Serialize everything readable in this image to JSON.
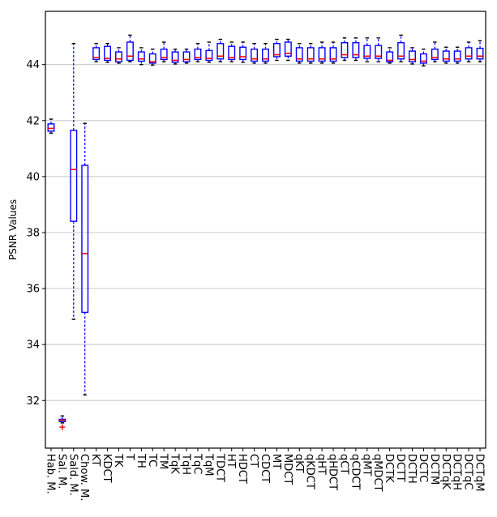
{
  "chart_data": {
    "type": "box",
    "title": "",
    "xlabel": "",
    "ylabel": "PSNR Values",
    "ylim": [
      30.3,
      45.9
    ],
    "yticks": [
      32,
      34,
      36,
      38,
      40,
      42,
      44
    ],
    "grid": "horizontal",
    "colors": {
      "box": "#0000ff",
      "median": "#ff0000",
      "grid": "#d0d0d0",
      "outlier": "#ff0000"
    },
    "categories": [
      "Hab. M.",
      "Sal. M.",
      "Sald. M.",
      "Chow. M.",
      "KT",
      "KDCT",
      "TK",
      "T",
      "TH",
      "TC",
      "TM",
      "TqK",
      "TqH",
      "TqC",
      "TqM",
      "TDCT",
      "HT",
      "HDCT",
      "CT",
      "CDCT",
      "MT",
      "MDCT",
      "qKT",
      "qKDCT",
      "qHT",
      "qHDCT",
      "qCT",
      "qCDCT",
      "qMT",
      "qMDCT",
      "DCTK",
      "DCTT",
      "DCTH",
      "DCTC",
      "DCTM",
      "DCTqK",
      "DCTqH",
      "DCTqC",
      "DCTqM"
    ],
    "boxes": [
      {
        "whislo": 41.55,
        "q1": 41.62,
        "med": 41.72,
        "q3": 41.88,
        "whishi": 42.05,
        "fliers": []
      },
      {
        "whislo": 31.2,
        "q1": 31.25,
        "med": 31.3,
        "q3": 31.33,
        "whishi": 31.45,
        "fliers": [
          31.05
        ]
      },
      {
        "whislo": 34.9,
        "q1": 38.4,
        "med": 40.25,
        "q3": 41.65,
        "whishi": 44.75,
        "fliers": []
      },
      {
        "whislo": 32.2,
        "q1": 35.15,
        "med": 37.25,
        "q3": 40.4,
        "whishi": 41.9,
        "fliers": []
      },
      {
        "whislo": 44.1,
        "q1": 44.18,
        "med": 44.25,
        "q3": 44.6,
        "whishi": 44.75,
        "fliers": []
      },
      {
        "whislo": 44.08,
        "q1": 44.15,
        "med": 44.22,
        "q3": 44.65,
        "whishi": 44.75,
        "fliers": []
      },
      {
        "whislo": 44.05,
        "q1": 44.1,
        "med": 44.2,
        "q3": 44.45,
        "whishi": 44.6,
        "fliers": []
      },
      {
        "whislo": 44.1,
        "q1": 44.15,
        "med": 44.3,
        "q3": 44.8,
        "whishi": 45.05,
        "fliers": []
      },
      {
        "whislo": 44.0,
        "q1": 44.12,
        "med": 44.2,
        "q3": 44.45,
        "whishi": 44.6,
        "fliers": []
      },
      {
        "whislo": 43.98,
        "q1": 44.05,
        "med": 44.1,
        "q3": 44.38,
        "whishi": 44.55,
        "fliers": []
      },
      {
        "whislo": 44.1,
        "q1": 44.18,
        "med": 44.25,
        "q3": 44.55,
        "whishi": 44.8,
        "fliers": []
      },
      {
        "whislo": 44.02,
        "q1": 44.08,
        "med": 44.15,
        "q3": 44.45,
        "whishi": 44.55,
        "fliers": []
      },
      {
        "whislo": 44.05,
        "q1": 44.1,
        "med": 44.18,
        "q3": 44.45,
        "whishi": 44.55,
        "fliers": []
      },
      {
        "whislo": 44.1,
        "q1": 44.18,
        "med": 44.25,
        "q3": 44.55,
        "whishi": 44.75,
        "fliers": []
      },
      {
        "whislo": 44.08,
        "q1": 44.15,
        "med": 44.22,
        "q3": 44.5,
        "whishi": 44.8,
        "fliers": []
      },
      {
        "whislo": 44.1,
        "q1": 44.2,
        "med": 44.3,
        "q3": 44.75,
        "whishi": 44.9,
        "fliers": []
      },
      {
        "whislo": 44.1,
        "q1": 44.18,
        "med": 44.25,
        "q3": 44.65,
        "whishi": 44.8,
        "fliers": []
      },
      {
        "whislo": 44.08,
        "q1": 44.18,
        "med": 44.28,
        "q3": 44.62,
        "whishi": 44.8,
        "fliers": []
      },
      {
        "whislo": 44.05,
        "q1": 44.12,
        "med": 44.2,
        "q3": 44.55,
        "whishi": 44.75,
        "fliers": []
      },
      {
        "whislo": 44.05,
        "q1": 44.12,
        "med": 44.2,
        "q3": 44.55,
        "whishi": 44.75,
        "fliers": []
      },
      {
        "whislo": 44.15,
        "q1": 44.28,
        "med": 44.35,
        "q3": 44.75,
        "whishi": 44.9,
        "fliers": []
      },
      {
        "whislo": 44.15,
        "q1": 44.3,
        "med": 44.4,
        "q3": 44.8,
        "whishi": 44.9,
        "fliers": []
      },
      {
        "whislo": 44.05,
        "q1": 44.12,
        "med": 44.2,
        "q3": 44.6,
        "whishi": 44.75,
        "fliers": []
      },
      {
        "whislo": 44.05,
        "q1": 44.12,
        "med": 44.2,
        "q3": 44.6,
        "whishi": 44.75,
        "fliers": []
      },
      {
        "whislo": 44.05,
        "q1": 44.12,
        "med": 44.2,
        "q3": 44.6,
        "whishi": 44.8,
        "fliers": []
      },
      {
        "whislo": 44.05,
        "q1": 44.12,
        "med": 44.2,
        "q3": 44.6,
        "whishi": 44.8,
        "fliers": []
      },
      {
        "whislo": 44.15,
        "q1": 44.25,
        "med": 44.35,
        "q3": 44.78,
        "whishi": 44.95,
        "fliers": []
      },
      {
        "whislo": 44.15,
        "q1": 44.25,
        "med": 44.35,
        "q3": 44.78,
        "whishi": 44.95,
        "fliers": []
      },
      {
        "whislo": 44.1,
        "q1": 44.22,
        "med": 44.3,
        "q3": 44.68,
        "whishi": 44.95,
        "fliers": []
      },
      {
        "whislo": 44.1,
        "q1": 44.22,
        "med": 44.3,
        "q3": 44.68,
        "whishi": 44.95,
        "fliers": []
      },
      {
        "whislo": 44.05,
        "q1": 44.1,
        "med": 44.15,
        "q3": 44.45,
        "whishi": 44.6,
        "fliers": []
      },
      {
        "whislo": 44.1,
        "q1": 44.2,
        "med": 44.3,
        "q3": 44.78,
        "whishi": 45.05,
        "fliers": []
      },
      {
        "whislo": 44.02,
        "q1": 44.1,
        "med": 44.18,
        "q3": 44.48,
        "whishi": 44.6,
        "fliers": []
      },
      {
        "whislo": 43.95,
        "q1": 44.05,
        "med": 44.12,
        "q3": 44.38,
        "whishi": 44.55,
        "fliers": []
      },
      {
        "whislo": 44.1,
        "q1": 44.18,
        "med": 44.25,
        "q3": 44.55,
        "whishi": 44.8,
        "fliers": []
      },
      {
        "whislo": 44.05,
        "q1": 44.12,
        "med": 44.2,
        "q3": 44.48,
        "whishi": 44.62,
        "fliers": []
      },
      {
        "whislo": 44.05,
        "q1": 44.12,
        "med": 44.2,
        "q3": 44.48,
        "whishi": 44.62,
        "fliers": []
      },
      {
        "whislo": 44.1,
        "q1": 44.2,
        "med": 44.3,
        "q3": 44.6,
        "whishi": 44.8,
        "fliers": []
      },
      {
        "whislo": 44.1,
        "q1": 44.2,
        "med": 44.3,
        "q3": 44.58,
        "whishi": 44.85,
        "fliers": []
      }
    ]
  }
}
